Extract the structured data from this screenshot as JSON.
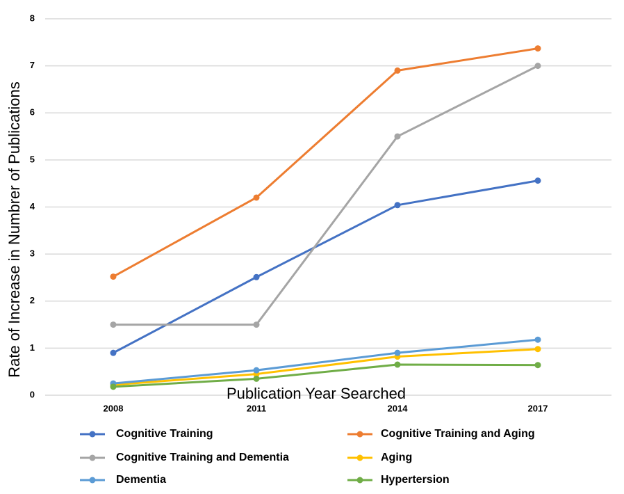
{
  "chart_data": {
    "type": "line",
    "x_label": "Publication Year Searched",
    "y_label": "Rate of Increase in Numbrer of Publications",
    "categories": [
      "2008",
      "2011",
      "2014",
      "2017"
    ],
    "series": [
      {
        "name": "Cognitive Training",
        "color": "#4472c4",
        "values": [
          0.9,
          2.51,
          4.04,
          4.56
        ]
      },
      {
        "name": "Cognitive Training and Aging",
        "color": "#ed7d31",
        "values": [
          2.52,
          4.2,
          6.9,
          7.37
        ]
      },
      {
        "name": "Cognitive Training and Dementia",
        "color": "#a5a5a5",
        "values": [
          1.5,
          1.5,
          5.5,
          7.0
        ]
      },
      {
        "name": "Aging",
        "color": "#ffc000",
        "values": [
          0.22,
          0.45,
          0.82,
          0.98
        ]
      },
      {
        "name": "Dementia",
        "color": "#5b9bd5",
        "values": [
          0.25,
          0.53,
          0.9,
          1.18
        ]
      },
      {
        "name": "Hypertersion",
        "color": "#70ad47",
        "values": [
          0.18,
          0.35,
          0.65,
          0.64
        ]
      }
    ],
    "ylim": [
      0,
      8
    ],
    "yticks": [
      0,
      1,
      2,
      3,
      4,
      5,
      6,
      7,
      8
    ],
    "grid": true
  }
}
